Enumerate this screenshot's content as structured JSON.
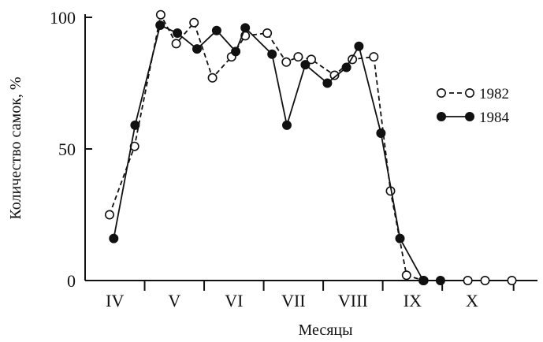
{
  "chart_data": {
    "type": "line",
    "title": "",
    "xlabel": "Месяцы",
    "ylabel": "Количество самок, %",
    "ylim": [
      0,
      100
    ],
    "yticks": [
      0,
      50,
      100
    ],
    "xlim": [
      3.5,
      11.1
    ],
    "months": [
      {
        "label": "IV",
        "center": 4
      },
      {
        "label": "V",
        "center": 5
      },
      {
        "label": "VI",
        "center": 6
      },
      {
        "label": "VII",
        "center": 7
      },
      {
        "label": "VIII",
        "center": 8
      },
      {
        "label": "IX",
        "center": 9
      },
      {
        "label": "X",
        "center": 10
      }
    ],
    "grid": false,
    "legend_position": "right",
    "series": [
      {
        "name": "1982",
        "marker": "open-circle",
        "line": "dashed",
        "color": "#111111",
        "x": [
          3.91,
          4.33,
          4.77,
          5.03,
          5.33,
          5.64,
          5.96,
          6.19,
          6.56,
          6.88,
          7.08,
          7.3,
          7.69,
          7.99,
          8.35,
          8.63,
          8.9,
          9.19,
          9.93,
          10.22,
          10.67
        ],
        "y": [
          25,
          51,
          101,
          90,
          98,
          77,
          85,
          93,
          94,
          83,
          85,
          84,
          78,
          84,
          85,
          34,
          2,
          0,
          0,
          0,
          0
        ]
      },
      {
        "name": "1984",
        "marker": "filled-circle",
        "line": "solid",
        "color": "#111111",
        "x": [
          3.98,
          4.34,
          4.76,
          5.05,
          5.38,
          5.71,
          6.03,
          6.19,
          6.64,
          6.89,
          7.2,
          7.57,
          7.89,
          8.1,
          8.47,
          8.79,
          9.18,
          9.47
        ],
        "y": [
          16,
          59,
          97,
          94,
          88,
          95,
          87,
          96,
          86,
          59,
          82,
          75,
          81,
          89,
          56,
          16,
          0,
          0
        ]
      }
    ]
  }
}
